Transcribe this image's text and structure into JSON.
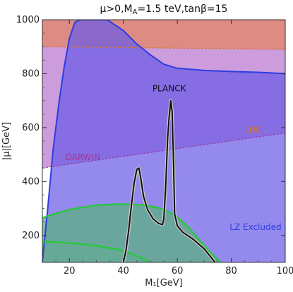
{
  "chart_data": {
    "type": "area",
    "title": "μ>0,M_A=1.5 teV,tanβ=15",
    "xlabel": "M₁[GeV]",
    "ylabel": "|μ|[GeV]",
    "xlim": [
      10,
      100
    ],
    "ylim": [
      100,
      1000
    ],
    "xticks": [
      20,
      40,
      60,
      80,
      100
    ],
    "yticks": [
      200,
      400,
      600,
      800,
      1000
    ],
    "grid": false,
    "colors": {
      "lz": "#6b5ce6",
      "lz_line": "#2d3ee0",
      "lhc": "#e08a7a",
      "lhc_line": "#d8742a",
      "darwin": "#c38bd6",
      "darwin_line": "#9a3aa0",
      "green_fill": "#5fae8a",
      "green_line": "#22cc33",
      "planck": "#111111"
    },
    "regions": [
      {
        "name": "DARWIN",
        "boundary": [
          [
            10,
            450
          ],
          [
            100,
            580
          ]
        ]
      },
      {
        "name": "LHC",
        "boundary": [
          [
            10,
            900
          ],
          [
            100,
            890
          ]
        ]
      },
      {
        "name": "LZ Excluded",
        "boundary": [
          [
            10,
            100
          ],
          [
            12,
            300
          ],
          [
            14,
            520
          ],
          [
            16,
            680
          ],
          [
            18,
            820
          ],
          [
            20,
            930
          ],
          [
            22,
            990
          ],
          [
            24,
            1000
          ],
          [
            34,
            1000
          ],
          [
            40,
            960
          ],
          [
            45,
            910
          ],
          [
            50,
            870
          ],
          [
            55,
            835
          ],
          [
            60,
            820
          ],
          [
            70,
            812
          ],
          [
            80,
            808
          ],
          [
            90,
            805
          ],
          [
            100,
            800
          ]
        ]
      }
    ],
    "green_curves": [
      {
        "points": [
          [
            10,
            265
          ],
          [
            16,
            285
          ],
          [
            22,
            300
          ],
          [
            30,
            312
          ],
          [
            38,
            316
          ],
          [
            46,
            314
          ],
          [
            52,
            305
          ],
          [
            56,
            292
          ],
          [
            60,
            268
          ],
          [
            64,
            232
          ],
          [
            68,
            185
          ],
          [
            72,
            140
          ],
          [
            76,
            100
          ]
        ]
      },
      {
        "points": [
          [
            10,
            177
          ],
          [
            16,
            175
          ],
          [
            22,
            170
          ],
          [
            28,
            164
          ],
          [
            34,
            155
          ],
          [
            38,
            148
          ],
          [
            42,
            135
          ],
          [
            46,
            120
          ],
          [
            50,
            100
          ]
        ]
      }
    ],
    "planck_curve": [
      [
        40,
        100
      ],
      [
        41,
        145
      ],
      [
        42,
        220
      ],
      [
        43,
        310
      ],
      [
        44,
        395
      ],
      [
        45,
        445
      ],
      [
        45.8,
        450
      ],
      [
        46.5,
        410
      ],
      [
        47.5,
        345
      ],
      [
        49,
        295
      ],
      [
        51,
        262
      ],
      [
        53,
        245
      ],
      [
        54.5,
        240
      ],
      [
        55,
        260
      ],
      [
        55.7,
        380
      ],
      [
        56.4,
        560
      ],
      [
        57,
        640
      ],
      [
        57.6,
        700
      ],
      [
        58.1,
        660
      ],
      [
        58.6,
        470
      ],
      [
        59,
        280
      ],
      [
        60,
        236
      ],
      [
        62,
        212
      ],
      [
        66,
        185
      ],
      [
        70,
        150
      ],
      [
        74,
        100
      ]
    ],
    "annotations": [
      {
        "text": "PLANCK",
        "x": 57,
        "y": 735
      },
      {
        "text": "LHC",
        "x": 88,
        "y": 582
      },
      {
        "text": "DARWIN",
        "x": 25,
        "y": 480
      },
      {
        "text": "LZ Excluded",
        "x": 89,
        "y": 220
      }
    ]
  }
}
